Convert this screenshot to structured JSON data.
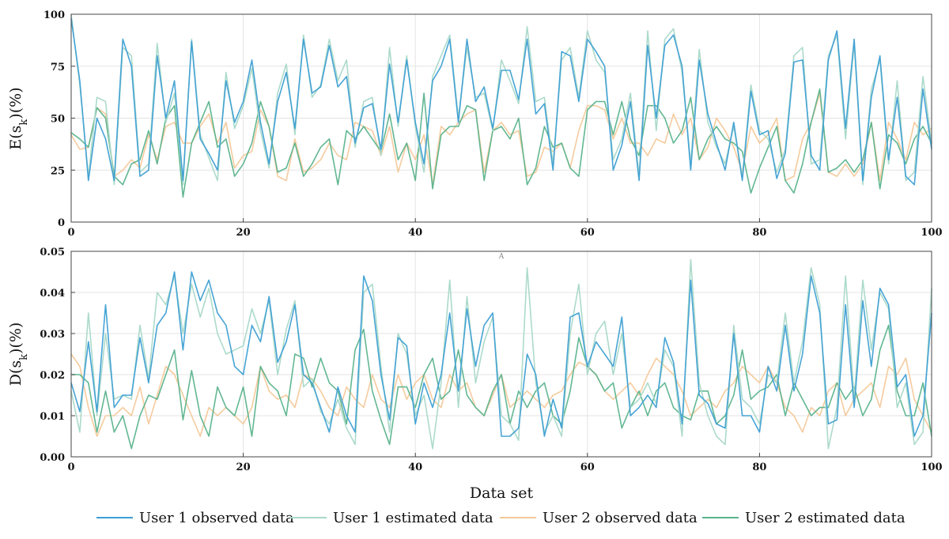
{
  "chart_data": [
    {
      "type": "line",
      "ylabel": "E(s_k)(%)",
      "xlim": [
        0,
        100
      ],
      "ylim": [
        0,
        100
      ],
      "xticks": [
        0,
        20,
        40,
        60,
        80,
        100
      ],
      "yticks": [
        0,
        25,
        50,
        75,
        100
      ],
      "x": [
        0,
        1,
        2,
        3,
        4,
        5,
        6,
        7,
        8,
        9,
        10,
        11,
        12,
        13,
        14,
        15,
        16,
        17,
        18,
        19,
        20,
        21,
        22,
        23,
        24,
        25,
        26,
        27,
        28,
        29,
        30,
        31,
        32,
        33,
        34,
        35,
        36,
        37,
        38,
        39,
        40,
        41,
        42,
        43,
        44,
        45,
        46,
        47,
        48,
        49,
        50,
        51,
        52,
        53,
        54,
        55,
        56,
        57,
        58,
        59,
        60,
        61,
        62,
        63,
        64,
        65,
        66,
        67,
        68,
        69,
        70,
        71,
        72,
        73,
        74,
        75,
        76,
        77,
        78,
        79,
        80,
        81,
        82,
        83,
        84,
        85,
        86,
        87,
        88,
        89,
        90,
        91,
        92,
        93,
        94,
        95,
        96,
        97,
        98,
        99,
        100
      ],
      "series": [
        {
          "name": "User 1 observed data",
          "color": "#3d9fd3",
          "values": [
            98,
            68,
            20,
            50,
            40,
            20,
            88,
            75,
            22,
            25,
            80,
            50,
            68,
            20,
            87,
            40,
            33,
            25,
            68,
            48,
            58,
            78,
            48,
            28,
            58,
            72,
            45,
            88,
            62,
            65,
            85,
            65,
            70,
            38,
            55,
            57,
            35,
            76,
            48,
            78,
            48,
            28,
            68,
            75,
            88,
            48,
            88,
            58,
            65,
            45,
            73,
            73,
            59,
            88,
            52,
            57,
            25,
            82,
            80,
            58,
            88,
            82,
            75,
            25,
            37,
            58,
            20,
            85,
            50,
            85,
            90,
            75,
            25,
            78,
            52,
            38,
            25,
            48,
            20,
            63,
            42,
            44,
            21,
            33,
            77,
            78,
            32,
            25,
            78,
            92,
            45,
            88,
            20,
            60,
            80,
            30,
            60,
            22,
            18,
            64,
            35
          ]
        },
        {
          "name": "User 1 estimated data",
          "color": "#a8d8c8",
          "values": [
            100,
            66,
            22,
            60,
            58,
            18,
            84,
            80,
            24,
            28,
            86,
            48,
            62,
            18,
            88,
            42,
            31,
            20,
            72,
            45,
            56,
            74,
            44,
            26,
            62,
            76,
            42,
            90,
            60,
            66,
            88,
            68,
            78,
            36,
            58,
            60,
            32,
            84,
            46,
            80,
            46,
            24,
            70,
            80,
            90,
            50,
            84,
            60,
            62,
            44,
            78,
            68,
            57,
            94,
            58,
            60,
            28,
            78,
            84,
            60,
            92,
            78,
            72,
            30,
            40,
            62,
            22,
            92,
            44,
            88,
            93,
            72,
            28,
            83,
            48,
            36,
            28,
            46,
            22,
            66,
            44,
            40,
            24,
            35,
            80,
            84,
            28,
            30,
            80,
            90,
            40,
            86,
            18,
            64,
            78,
            28,
            68,
            20,
            24,
            70,
            38
          ]
        },
        {
          "name": "User 2 observed data",
          "color": "#f4c899",
          "values": [
            42,
            35,
            36,
            55,
            52,
            22,
            25,
            30,
            26,
            42,
            30,
            46,
            48,
            38,
            38,
            46,
            52,
            38,
            48,
            26,
            32,
            34,
            54,
            46,
            22,
            20,
            40,
            24,
            26,
            30,
            38,
            32,
            30,
            48,
            46,
            44,
            32,
            46,
            24,
            38,
            30,
            42,
            18,
            46,
            42,
            48,
            52,
            54,
            24,
            44,
            48,
            42,
            44,
            22,
            24,
            36,
            34,
            38,
            26,
            44,
            56,
            56,
            54,
            40,
            50,
            38,
            38,
            32,
            40,
            38,
            52,
            42,
            50,
            30,
            36,
            50,
            44,
            36,
            24,
            46,
            38,
            42,
            50,
            20,
            22,
            40,
            48,
            62,
            24,
            22,
            28,
            22,
            28,
            48,
            20,
            48,
            40,
            30,
            48,
            42,
            45
          ]
        },
        {
          "name": "User 2 estimated data",
          "color": "#5ab38c",
          "values": [
            43,
            40,
            36,
            55,
            50,
            22,
            18,
            28,
            30,
            44,
            28,
            50,
            56,
            12,
            38,
            48,
            58,
            36,
            40,
            22,
            28,
            38,
            58,
            46,
            24,
            26,
            38,
            22,
            28,
            36,
            40,
            18,
            44,
            40,
            46,
            40,
            34,
            52,
            30,
            38,
            20,
            62,
            16,
            42,
            46,
            46,
            56,
            54,
            20,
            44,
            46,
            40,
            50,
            18,
            26,
            46,
            36,
            38,
            26,
            22,
            54,
            58,
            58,
            42,
            58,
            40,
            32,
            56,
            56,
            50,
            38,
            44,
            60,
            30,
            40,
            46,
            40,
            38,
            34,
            14,
            26,
            36,
            46,
            20,
            14,
            28,
            48,
            64,
            24,
            26,
            30,
            24,
            30,
            48,
            16,
            42,
            38,
            28,
            40,
            46,
            38
          ]
        }
      ]
    },
    {
      "type": "line",
      "xlabel": "Data set",
      "ylabel": "D(s_k)(%)",
      "xlim": [
        0,
        100
      ],
      "ylim": [
        0,
        0.05
      ],
      "xticks": [
        0,
        20,
        40,
        60,
        80,
        100
      ],
      "yticks": [
        0.0,
        0.01,
        0.02,
        0.03,
        0.04,
        0.05
      ],
      "x": [
        0,
        1,
        2,
        3,
        4,
        5,
        6,
        7,
        8,
        9,
        10,
        11,
        12,
        13,
        14,
        15,
        16,
        17,
        18,
        19,
        20,
        21,
        22,
        23,
        24,
        25,
        26,
        27,
        28,
        29,
        30,
        31,
        32,
        33,
        34,
        35,
        36,
        37,
        38,
        39,
        40,
        41,
        42,
        43,
        44,
        45,
        46,
        47,
        48,
        49,
        50,
        51,
        52,
        53,
        54,
        55,
        56,
        57,
        58,
        59,
        60,
        61,
        62,
        63,
        64,
        65,
        66,
        67,
        68,
        69,
        70,
        71,
        72,
        73,
        74,
        75,
        76,
        77,
        78,
        79,
        80,
        81,
        82,
        83,
        84,
        85,
        86,
        87,
        88,
        89,
        90,
        91,
        92,
        93,
        94,
        95,
        96,
        97,
        98,
        99,
        100
      ],
      "series": [
        {
          "name": "User 1 observed data",
          "color": "#3d9fd3",
          "values": [
            0.018,
            0.011,
            0.028,
            0.011,
            0.037,
            0.012,
            0.015,
            0.015,
            0.029,
            0.018,
            0.032,
            0.035,
            0.045,
            0.026,
            0.045,
            0.038,
            0.043,
            0.035,
            0.032,
            0.022,
            0.02,
            0.032,
            0.028,
            0.039,
            0.023,
            0.028,
            0.037,
            0.02,
            0.018,
            0.012,
            0.006,
            0.017,
            0.01,
            0.006,
            0.044,
            0.038,
            0.02,
            0.009,
            0.029,
            0.027,
            0.008,
            0.018,
            0.012,
            0.02,
            0.035,
            0.016,
            0.036,
            0.022,
            0.032,
            0.035,
            0.005,
            0.005,
            0.007,
            0.025,
            0.02,
            0.005,
            0.014,
            0.007,
            0.034,
            0.035,
            0.022,
            0.028,
            0.025,
            0.022,
            0.034,
            0.01,
            0.012,
            0.015,
            0.012,
            0.029,
            0.023,
            0.008,
            0.043,
            0.015,
            0.013,
            0.008,
            0.007,
            0.03,
            0.01,
            0.01,
            0.006,
            0.022,
            0.016,
            0.032,
            0.016,
            0.025,
            0.044,
            0.035,
            0.008,
            0.009,
            0.037,
            0.012,
            0.038,
            0.022,
            0.041,
            0.037,
            0.017,
            0.02,
            0.005,
            0.01,
            0.035
          ]
        },
        {
          "name": "User 1 estimated data",
          "color": "#a8d8c8",
          "values": [
            0.016,
            0.006,
            0.035,
            0.01,
            0.03,
            0.014,
            0.015,
            0.014,
            0.032,
            0.019,
            0.04,
            0.037,
            0.044,
            0.03,
            0.042,
            0.034,
            0.041,
            0.03,
            0.025,
            0.026,
            0.027,
            0.036,
            0.03,
            0.038,
            0.02,
            0.031,
            0.038,
            0.017,
            0.019,
            0.011,
            0.008,
            0.014,
            0.007,
            0.003,
            0.04,
            0.042,
            0.022,
            0.006,
            0.03,
            0.025,
            0.01,
            0.015,
            0.002,
            0.018,
            0.043,
            0.012,
            0.039,
            0.018,
            0.028,
            0.034,
            0.01,
            0.008,
            0.004,
            0.046,
            0.018,
            0.006,
            0.01,
            0.005,
            0.03,
            0.042,
            0.02,
            0.03,
            0.033,
            0.02,
            0.03,
            0.012,
            0.014,
            0.018,
            0.013,
            0.026,
            0.022,
            0.005,
            0.048,
            0.018,
            0.01,
            0.005,
            0.003,
            0.032,
            0.014,
            0.012,
            0.008,
            0.02,
            0.018,
            0.035,
            0.018,
            0.028,
            0.046,
            0.037,
            0.002,
            0.012,
            0.044,
            0.014,
            0.043,
            0.026,
            0.04,
            0.036,
            0.012,
            0.018,
            0.003,
            0.006,
            0.041
          ]
        },
        {
          "name": "User 2 observed data",
          "color": "#f4c899",
          "values": [
            0.025,
            0.022,
            0.012,
            0.005,
            0.01,
            0.01,
            0.012,
            0.01,
            0.017,
            0.008,
            0.015,
            0.022,
            0.02,
            0.015,
            0.01,
            0.005,
            0.012,
            0.01,
            0.012,
            0.01,
            0.008,
            0.012,
            0.022,
            0.016,
            0.014,
            0.015,
            0.012,
            0.02,
            0.019,
            0.016,
            0.012,
            0.01,
            0.017,
            0.014,
            0.012,
            0.02,
            0.014,
            0.012,
            0.02,
            0.014,
            0.018,
            0.02,
            0.014,
            0.012,
            0.02,
            0.016,
            0.018,
            0.012,
            0.01,
            0.015,
            0.02,
            0.012,
            0.014,
            0.016,
            0.014,
            0.012,
            0.015,
            0.016,
            0.02,
            0.023,
            0.022,
            0.02,
            0.016,
            0.014,
            0.016,
            0.018,
            0.015,
            0.02,
            0.024,
            0.022,
            0.02,
            0.016,
            0.01,
            0.012,
            0.014,
            0.012,
            0.016,
            0.018,
            0.022,
            0.02,
            0.018,
            0.022,
            0.018,
            0.012,
            0.01,
            0.006,
            0.012,
            0.01,
            0.016,
            0.018,
            0.01,
            0.014,
            0.016,
            0.018,
            0.012,
            0.022,
            0.02,
            0.024,
            0.014,
            0.01,
            0.006
          ]
        },
        {
          "name": "User 2 estimated data",
          "color": "#5ab38c",
          "values": [
            0.02,
            0.02,
            0.018,
            0.006,
            0.016,
            0.006,
            0.01,
            0.002,
            0.01,
            0.015,
            0.014,
            0.02,
            0.026,
            0.009,
            0.021,
            0.01,
            0.005,
            0.017,
            0.012,
            0.01,
            0.017,
            0.005,
            0.022,
            0.018,
            0.016,
            0.01,
            0.025,
            0.024,
            0.017,
            0.024,
            0.018,
            0.016,
            0.008,
            0.026,
            0.031,
            0.016,
            0.009,
            0.003,
            0.017,
            0.017,
            0.012,
            0.02,
            0.024,
            0.014,
            0.016,
            0.026,
            0.015,
            0.012,
            0.01,
            0.016,
            0.02,
            0.008,
            0.016,
            0.012,
            0.016,
            0.018,
            0.01,
            0.008,
            0.016,
            0.029,
            0.022,
            0.02,
            0.016,
            0.018,
            0.007,
            0.012,
            0.016,
            0.01,
            0.016,
            0.018,
            0.012,
            0.01,
            0.009,
            0.016,
            0.016,
            0.008,
            0.01,
            0.015,
            0.026,
            0.014,
            0.016,
            0.017,
            0.02,
            0.01,
            0.018,
            0.014,
            0.01,
            0.012,
            0.012,
            0.018,
            0.014,
            0.017,
            0.01,
            0.014,
            0.026,
            0.032,
            0.016,
            0.01,
            0.01,
            0.018,
            0.005
          ]
        }
      ]
    }
  ],
  "legend": {
    "placement": "bottom",
    "items": [
      {
        "label": "User 1 observed data",
        "color": "#3d9fd3"
      },
      {
        "label": "User 1 estimated data",
        "color": "#a8d8c8"
      },
      {
        "label": "User 2 observed data",
        "color": "#f4c899"
      },
      {
        "label": "User 2 estimated data",
        "color": "#5ab38c"
      }
    ]
  },
  "stray_mark": "A"
}
